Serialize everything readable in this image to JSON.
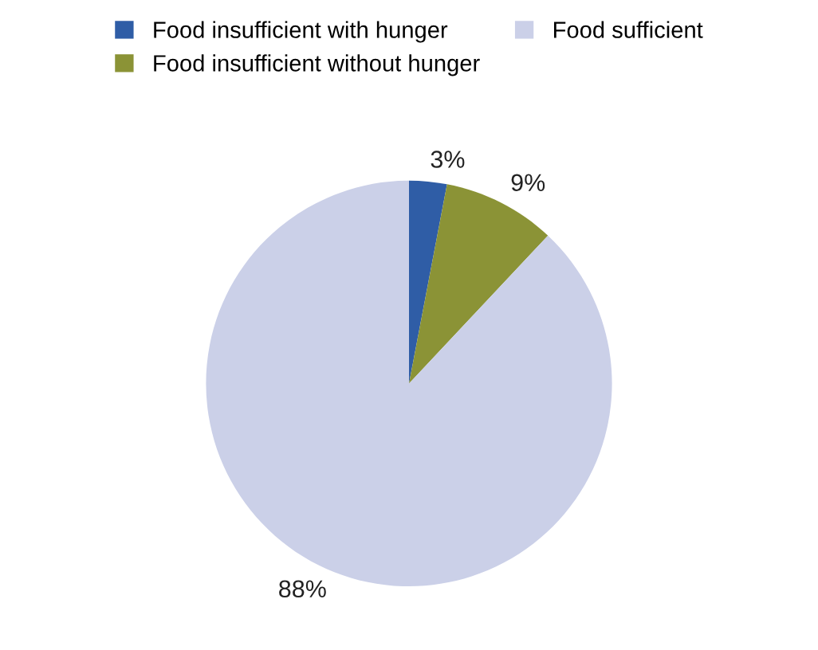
{
  "chart_data": {
    "type": "pie",
    "categories": [
      "Food insufficient with hunger",
      "Food insufficient without hunger",
      "Food sufficient"
    ],
    "values": [
      3,
      9,
      88
    ],
    "colors": [
      "#2f5da6",
      "#8b9336",
      "#cbd0e8"
    ],
    "value_labels": [
      "3%",
      "9%",
      "88%"
    ],
    "legend": "top"
  }
}
